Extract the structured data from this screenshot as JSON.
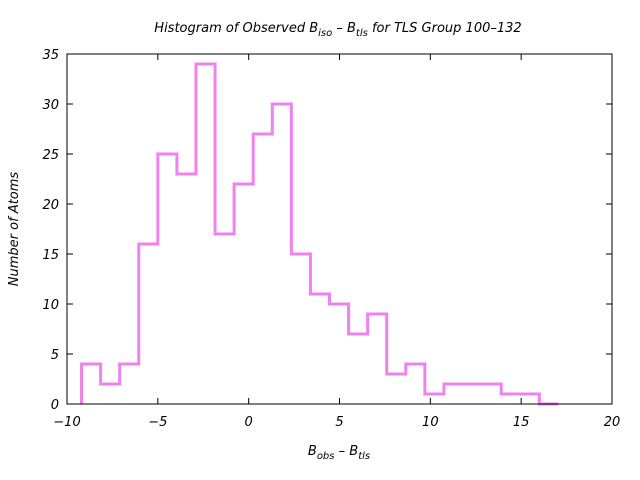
{
  "chart_data": {
    "type": "bar",
    "style": "step-histogram",
    "title": {
      "prefix": "Histogram of Observed B",
      "sub1": "iso",
      "middle": " – B",
      "sub2": "tls",
      "suffix": " for TLS Group 100–132"
    },
    "xlabel": {
      "main1": "B",
      "sub1": "obs",
      "main2": " – B",
      "sub2": "tls"
    },
    "ylabel": "Number of Atoms",
    "xlim": [
      -10,
      20
    ],
    "ylim": [
      0,
      35
    ],
    "xticks": [
      -10,
      -5,
      0,
      5,
      10,
      15,
      20
    ],
    "yticks": [
      0,
      5,
      10,
      15,
      20,
      25,
      30,
      35
    ],
    "xtick_labels": [
      "−10",
      "−5",
      "0",
      "5",
      "10",
      "15",
      "20"
    ],
    "ytick_labels": [
      "0",
      "5",
      "10",
      "15",
      "20",
      "25",
      "30",
      "35"
    ],
    "grid": false,
    "legend": "none",
    "color": "#ee82ee",
    "bin_edges": [
      -9.2,
      -8.15,
      -7.1,
      -6.05,
      -5.0,
      -3.95,
      -2.9,
      -1.85,
      -0.8,
      0.25,
      1.3,
      2.35,
      3.4,
      4.45,
      5.5,
      6.55,
      7.6,
      8.65,
      9.7,
      10.75,
      11.8,
      12.85,
      13.9,
      14.95,
      16.0,
      17.05
    ],
    "counts": [
      4,
      2,
      4,
      16,
      25,
      23,
      34,
      17,
      22,
      27,
      30,
      15,
      11,
      10,
      7,
      9,
      3,
      4,
      1,
      2,
      2,
      2,
      1,
      1,
      0
    ]
  }
}
